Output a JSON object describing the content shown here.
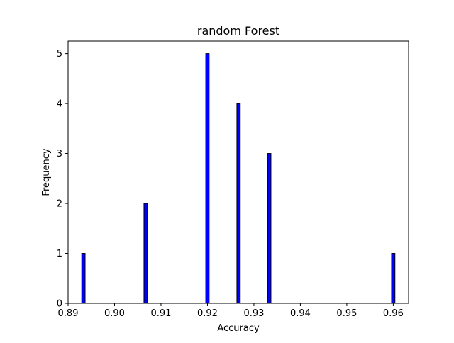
{
  "chart_data": {
    "type": "bar",
    "title": "random Forest",
    "xlabel": "Accuracy",
    "ylabel": "Frequency",
    "xlim": [
      0.89,
      0.9633
    ],
    "ylim": [
      0,
      5.25
    ],
    "x_ticks": [
      {
        "value": 0.89,
        "label": "0.89"
      },
      {
        "value": 0.9,
        "label": "0.90"
      },
      {
        "value": 0.91,
        "label": "0.91"
      },
      {
        "value": 0.92,
        "label": "0.92"
      },
      {
        "value": 0.93,
        "label": "0.93"
      },
      {
        "value": 0.94,
        "label": "0.94"
      },
      {
        "value": 0.95,
        "label": "0.95"
      },
      {
        "value": 0.96,
        "label": "0.96"
      }
    ],
    "y_ticks": [
      {
        "value": 0,
        "label": "0"
      },
      {
        "value": 1,
        "label": "1"
      },
      {
        "value": 2,
        "label": "2"
      },
      {
        "value": 3,
        "label": "3"
      },
      {
        "value": 4,
        "label": "4"
      },
      {
        "value": 5,
        "label": "5"
      }
    ],
    "bars": [
      {
        "x": 0.8933,
        "value": 1
      },
      {
        "x": 0.9067,
        "value": 2
      },
      {
        "x": 0.92,
        "value": 5
      },
      {
        "x": 0.9267,
        "value": 4
      },
      {
        "x": 0.9333,
        "value": 3
      },
      {
        "x": 0.96,
        "value": 1
      }
    ],
    "bar_width": 0.00073,
    "bar_color": "#0000ff",
    "edge_color": "#000000",
    "grid": false
  }
}
